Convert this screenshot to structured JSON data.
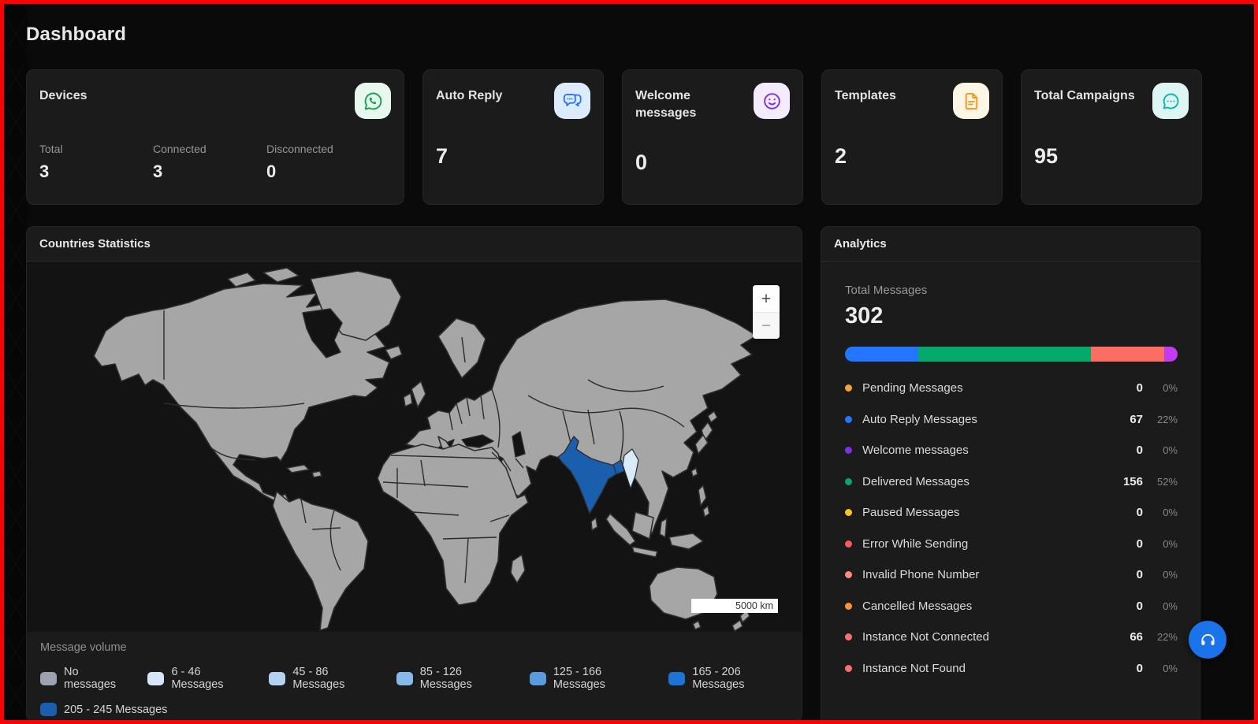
{
  "page": {
    "title": "Dashboard"
  },
  "colors": {
    "frame_red": "#ff0000"
  },
  "stat_cards": [
    {
      "title": "Devices",
      "icon": "whatsapp-icon",
      "icon_color": "#14a24c",
      "icon_bg": "#e8f8ef",
      "metrics": [
        {
          "label": "Total",
          "value": "3"
        },
        {
          "label": "Connected",
          "value": "3"
        },
        {
          "label": "Disconnected",
          "value": "0"
        }
      ]
    },
    {
      "title": "Auto Reply",
      "icon": "chat-bubbles-icon",
      "icon_color": "#2472fa",
      "icon_bg": "#dcebfe",
      "value": "7"
    },
    {
      "title": "Welcome messages",
      "icon": "smiley-icon",
      "icon_color": "#7c2fe8",
      "icon_bg": "#f4ebfe",
      "value": "0"
    },
    {
      "title": "Templates",
      "icon": "document-icon",
      "icon_color": "#f8951d",
      "icon_bg": "#fdf6e4",
      "value": "2"
    },
    {
      "title": "Total Campaigns",
      "icon": "campaign-chat-icon",
      "icon_color": "#0fb5ac",
      "icon_bg": "#ddf6f3",
      "value": "95"
    }
  ],
  "countries_panel": {
    "title": "Countries Statistics",
    "map": {
      "zoom_in_label": "+",
      "zoom_out_label": "−",
      "scale_label": "5000 km",
      "land_color": "#a6a6a6",
      "border_color": "#2c2c2c",
      "ocean_color": "#131313",
      "india_color": "#1a5fae",
      "bangladesh_color": "#1a5fae",
      "myanmar_color": "#d9eaf8"
    },
    "legend_title": "Message volume",
    "legend": [
      {
        "label": "No messages",
        "color": "#9ca3af"
      },
      {
        "label": "6 - 46 Messages",
        "color": "#d4e6f7"
      },
      {
        "label": "45 - 86 Messages",
        "color": "#b3d3f0"
      },
      {
        "label": "85 - 126 Messages",
        "color": "#88bae9"
      },
      {
        "label": "125 - 166 Messages",
        "color": "#5b9bdd"
      },
      {
        "label": "165 - 206 Messages",
        "color": "#1d74d4"
      },
      {
        "label": "205 - 245 Messages",
        "color": "#1a5fae"
      }
    ]
  },
  "analytics_panel": {
    "title": "Analytics",
    "total_label": "Total Messages",
    "total_value": "302",
    "bar_segments": [
      {
        "name": "auto-reply",
        "color": "#2276ff",
        "pct": 22
      },
      {
        "name": "delivered",
        "color": "#04a96c",
        "pct": 52
      },
      {
        "name": "instance-not-connected",
        "color": "#fc6e62",
        "pct": 22
      },
      {
        "name": "other",
        "color": "#c33bf0",
        "pct": 4
      }
    ],
    "items": [
      {
        "label": "Pending Messages",
        "value": "0",
        "pct": "0%",
        "color": "#f7a23b"
      },
      {
        "label": "Auto Reply Messages",
        "value": "67",
        "pct": "22%",
        "color": "#2276ff"
      },
      {
        "label": "Welcome messages",
        "value": "0",
        "pct": "0%",
        "color": "#7c2fe8"
      },
      {
        "label": "Delivered Messages",
        "value": "156",
        "pct": "52%",
        "color": "#0ba46f"
      },
      {
        "label": "Paused Messages",
        "value": "0",
        "pct": "0%",
        "color": "#fdc228"
      },
      {
        "label": "Error While Sending",
        "value": "0",
        "pct": "0%",
        "color": "#f8595f"
      },
      {
        "label": "Invalid Phone Number",
        "value": "0",
        "pct": "0%",
        "color": "#fa8a82"
      },
      {
        "label": "Cancelled Messages",
        "value": "0",
        "pct": "0%",
        "color": "#fb923c"
      },
      {
        "label": "Instance Not Connected",
        "value": "66",
        "pct": "22%",
        "color": "#f87171"
      },
      {
        "label": "Instance Not Found",
        "value": "0",
        "pct": "0%",
        "color": "#f87171"
      }
    ]
  },
  "support_button": {
    "icon": "headphones-icon",
    "color": "#1a73e8"
  }
}
